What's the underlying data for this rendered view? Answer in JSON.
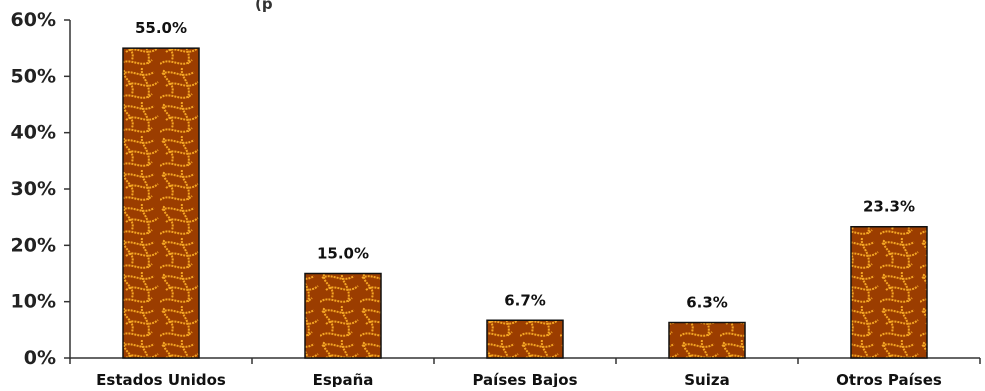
{
  "chart_data": {
    "type": "bar",
    "title_fragment": "(p",
    "categories": [
      "Estados Unidos",
      "España",
      "Países Bajos",
      "Suiza",
      "Otros Países"
    ],
    "values": [
      55.0,
      15.0,
      6.7,
      6.3,
      23.3
    ],
    "data_labels": [
      "55.0%",
      "15.0%",
      "6.7%",
      "6.3%",
      "23.3%"
    ],
    "yticks": [
      0,
      10,
      20,
      30,
      40,
      50,
      60
    ],
    "ytick_labels": [
      "0%",
      "10%",
      "20%",
      "30%",
      "40%",
      "50%",
      "60%"
    ],
    "ylim": [
      0,
      60
    ],
    "xlabel": "",
    "ylabel": "",
    "grid": false,
    "legend": "none",
    "colors": {
      "bar_fill": "#9b3d00",
      "bar_pattern": "#f5a623",
      "bar_stroke": "#111111",
      "axis": "#333333"
    }
  }
}
